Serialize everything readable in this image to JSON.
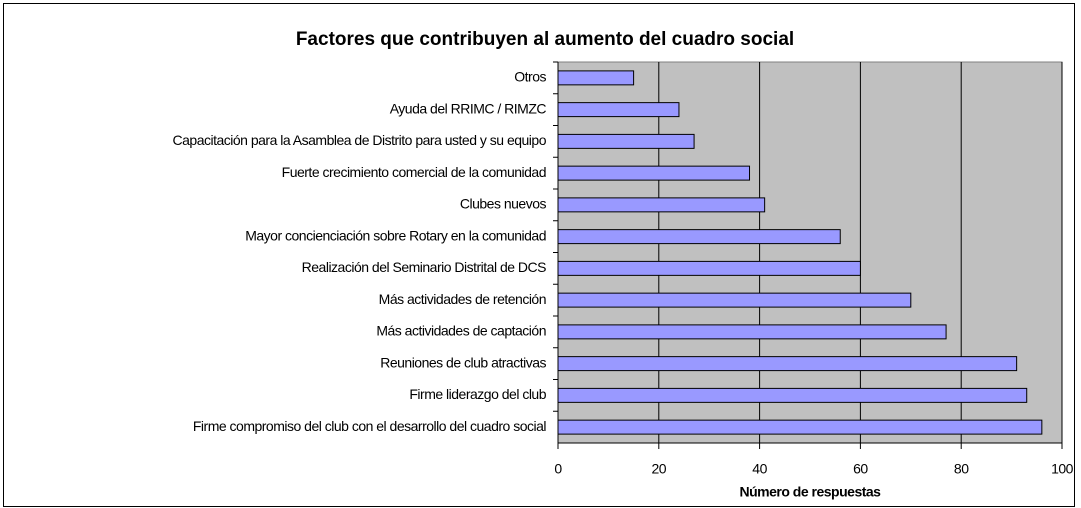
{
  "chart_data": {
    "type": "bar",
    "orientation": "horizontal",
    "title": "Factores que contribuyen al aumento del cuadro social",
    "xlabel": "Número de respuestas",
    "categories": [
      "Otros",
      "Ayuda del RRIMC / RIMZC",
      "Capacitación para la Asamblea de Distrito para usted y su equipo",
      "Fuerte crecimiento comercial de la comunidad",
      "Clubes nuevos",
      "Mayor concienciación sobre Rotary en la comunidad",
      "Realización del Seminario Distrital de DCS",
      "Más actividades de retención",
      "Más actividades de captación",
      "Reuniones de club atractivas",
      "Firme liderazgo del club",
      "Firme compromiso del club con el desarrollo del cuadro social"
    ],
    "values": [
      15,
      24,
      27,
      38,
      41,
      56,
      60,
      70,
      77,
      91,
      93,
      96
    ],
    "color": "#9999ff",
    "xlim": [
      0,
      100
    ],
    "xticks": [
      0,
      20,
      40,
      60,
      80,
      100
    ],
    "grid": true
  }
}
